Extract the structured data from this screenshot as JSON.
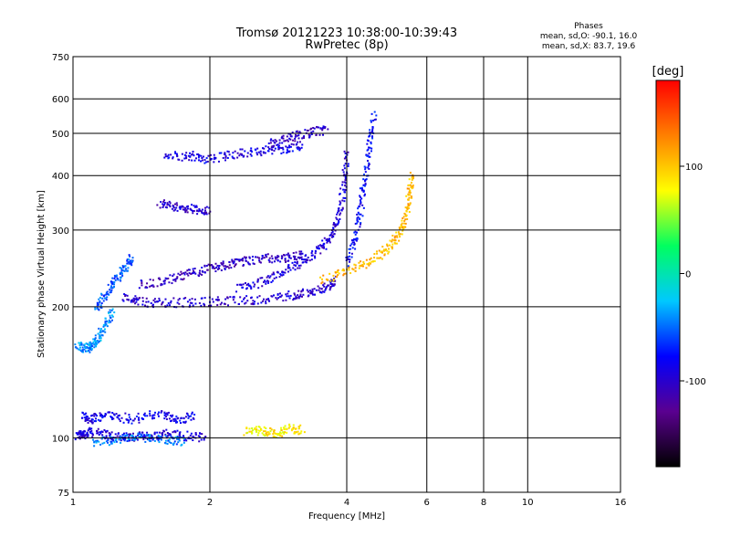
{
  "chart_data": {
    "type": "scatter",
    "title": "Tromsø 20121223 10:38:00-10:39:43",
    "subtitle": "RwPretec (8p)",
    "xlabel": "Frequency [MHz]",
    "ylabel": "Stationary phase Virtual Height [km]",
    "x_scale": "log",
    "y_scale": "log",
    "xlim": [
      1,
      16
    ],
    "ylim": [
      75,
      750
    ],
    "x_ticks": [
      1,
      2,
      4,
      6,
      8,
      10,
      16
    ],
    "y_ticks": [
      75,
      100,
      200,
      300,
      400,
      500,
      600,
      750
    ],
    "grid": true,
    "legend": {
      "title": "Phases",
      "line1": "mean, sd,O: -90.1, 16.0",
      "line2": "mean, sd,X: 83.7, 19.6"
    },
    "colorbar": {
      "label": "[deg]",
      "range": [
        -180,
        180
      ],
      "ticks": [
        100,
        0,
        -100
      ],
      "colors": [
        "#000000",
        "#5a0090",
        "#0000ff",
        "#00c8ff",
        "#00ff60",
        "#ffff00",
        "#ff8000",
        "#ff0000"
      ]
    },
    "series": [
      {
        "traces": [
          {
            "f": [
              1.02,
              1.05,
              1.1,
              1.2,
              1.3,
              1.45,
              1.6,
              1.75,
              1.95
            ],
            "h": [
              101,
              102,
              103,
              101,
              100,
              101,
              102,
              101,
              100
            ],
            "phase": -95
          },
          {
            "f": [
              1.05,
              1.1,
              1.2,
              1.35,
              1.55,
              1.7,
              1.85
            ],
            "h": [
              112,
              110,
              113,
              110,
              114,
              110,
              112
            ],
            "phase": -85
          },
          {
            "f": [
              1.02,
              1.07,
              1.1,
              1.13,
              1.18,
              1.22
            ],
            "h": [
              162,
              160,
              163,
              168,
              180,
              195
            ],
            "phase": -40
          },
          {
            "f": [
              1.12,
              1.18,
              1.24,
              1.3,
              1.35
            ],
            "h": [
              198,
              212,
              230,
              245,
              260
            ],
            "phase": -55
          },
          {
            "f": [
              1.3,
              1.4,
              1.6,
              1.9,
              2.2,
              2.6,
              3.0,
              3.3,
              3.6,
              3.8
            ],
            "h": [
              210,
              205,
              204,
              205,
              206,
              208,
              212,
              216,
              222,
              230
            ],
            "phase": -100
          },
          {
            "f": [
              1.4,
              1.6,
              1.8,
              2.0,
              2.2,
              2.4,
              2.7,
              3.0,
              3.2
            ],
            "h": [
              225,
              230,
              238,
              245,
              250,
              255,
              258,
              260,
              262
            ],
            "phase": -105
          },
          {
            "f": [
              2.3,
              2.6,
              2.9,
              3.2,
              3.5,
              3.7,
              3.85,
              3.95,
              4.0
            ],
            "h": [
              220,
              228,
              240,
              255,
              270,
              290,
              320,
              380,
              450
            ],
            "phase": -95
          },
          {
            "f": [
              3.5,
              4.0,
              4.5,
              4.9,
              5.2,
              5.4,
              5.5,
              5.55
            ],
            "h": [
              230,
              240,
              255,
              270,
              290,
              320,
              360,
              400
            ],
            "phase": 105
          },
          {
            "f": [
              4.0,
              4.2,
              4.3,
              4.4,
              4.5,
              4.6
            ],
            "h": [
              250,
              290,
              340,
              400,
              470,
              550
            ],
            "phase": -80
          },
          {
            "f": [
              1.55,
              1.7,
              1.85,
              2.0
            ],
            "h": [
              345,
              338,
              334,
              332
            ],
            "phase": -100
          },
          {
            "f": [
              1.6,
              1.8,
              2.0,
              2.3,
              2.6,
              2.9,
              3.2
            ],
            "h": [
              440,
              445,
              435,
              450,
              455,
              460,
              470
            ],
            "phase": -90
          },
          {
            "f": [
              2.7,
              3.0,
              3.3,
              3.6
            ],
            "h": [
              475,
              490,
              500,
              510
            ],
            "phase": -105
          },
          {
            "f": [
              2.4,
              2.6,
              2.8,
              3.0,
              3.2
            ],
            "h": [
              103,
              104,
              102,
              105,
              104
            ],
            "phase": 85
          },
          {
            "f": [
              1.1,
              1.25,
              1.4,
              1.6,
              1.75
            ],
            "h": [
              98,
              99,
              100,
              99,
              98
            ],
            "phase": -45
          }
        ]
      }
    ]
  }
}
